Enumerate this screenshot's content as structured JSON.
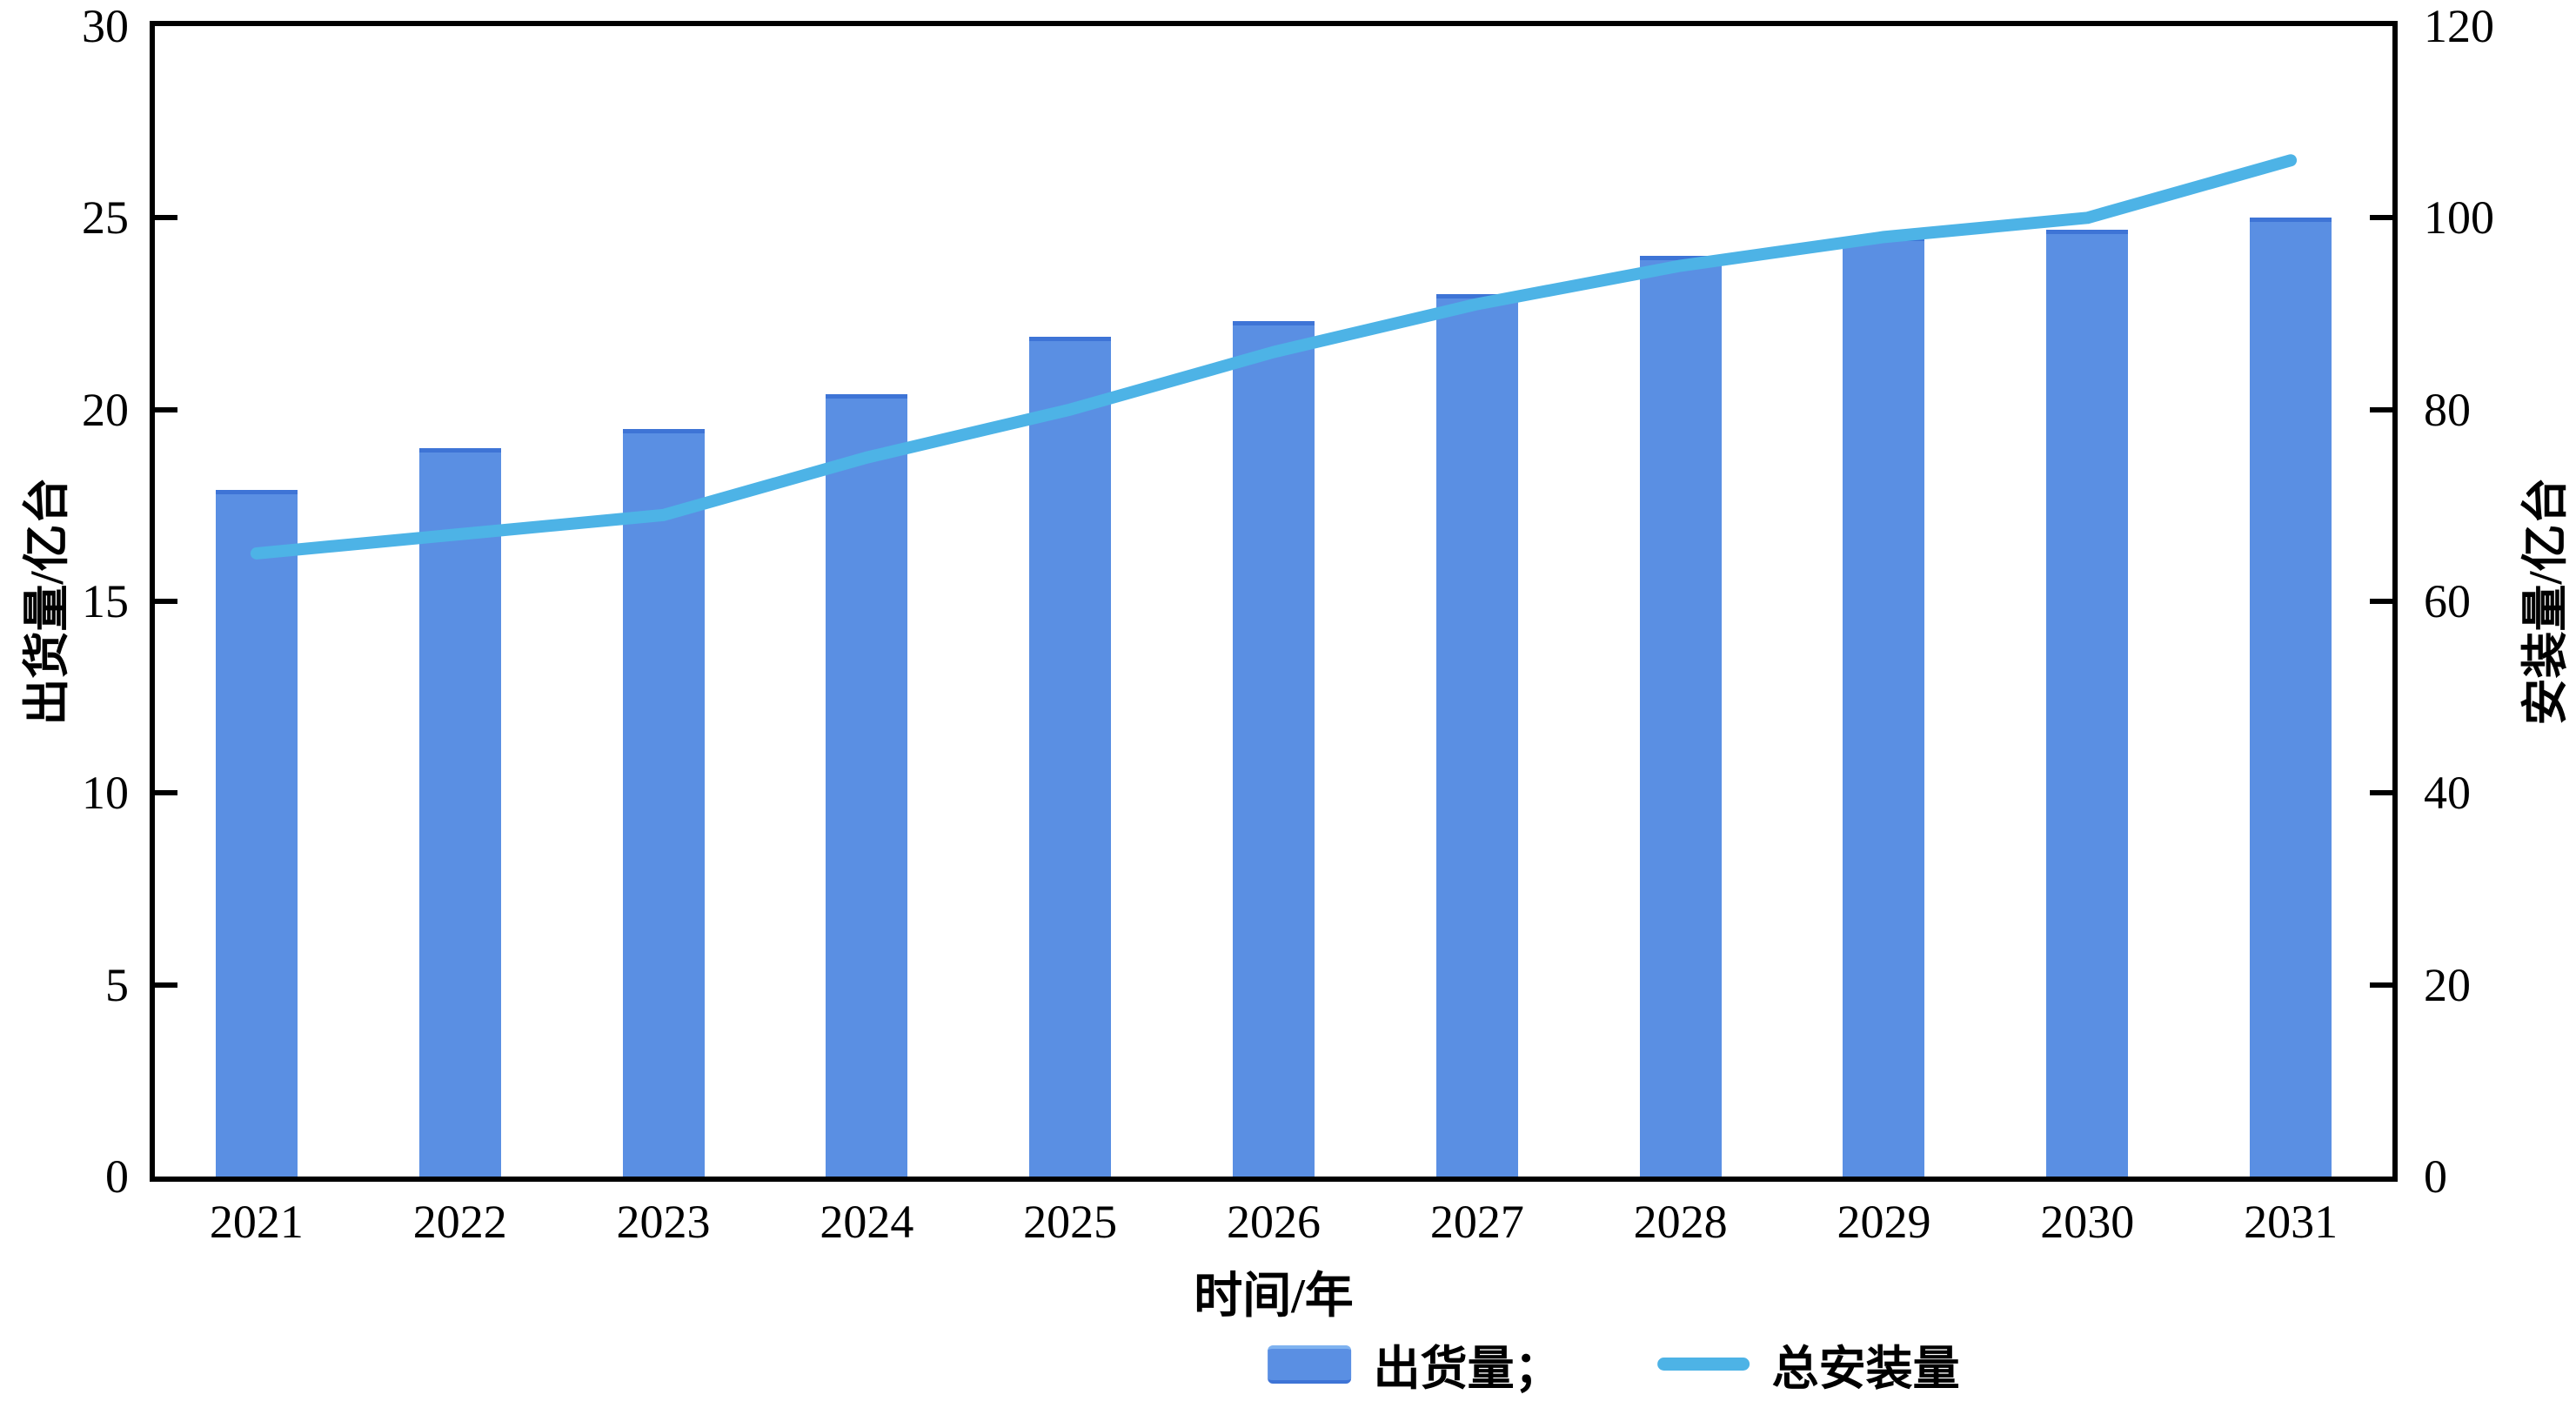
{
  "figure": {
    "background": "#ffffff"
  },
  "chart_data": {
    "type": "combo-bar-line",
    "categories": [
      "2021",
      "2022",
      "2023",
      "2024",
      "2025",
      "2026",
      "2027",
      "2028",
      "2029",
      "2030",
      "2031"
    ],
    "series": [
      {
        "name": "出货量",
        "type": "bar",
        "axis": "left",
        "color": "#5a8fe3",
        "edge_color": "#3e74d6",
        "values": [
          17.9,
          19.0,
          19.5,
          20.4,
          21.9,
          22.3,
          23.0,
          24.0,
          24.5,
          24.7,
          25.0
        ]
      },
      {
        "name": "总安装量",
        "type": "line",
        "axis": "right",
        "color": "#4db3e6",
        "values": [
          65,
          67,
          69,
          75,
          80,
          86,
          91,
          95,
          98,
          100,
          106
        ]
      }
    ],
    "x_axis": {
      "label": "时间/年"
    },
    "y_axis_left": {
      "label": "出货量/亿台",
      "min": 0,
      "max": 30,
      "ticks": [
        0,
        5,
        10,
        15,
        20,
        25,
        30
      ]
    },
    "y_axis_right": {
      "label": "安装量/亿台",
      "min": 0,
      "max": 120,
      "ticks": [
        0,
        20,
        40,
        60,
        80,
        100,
        120
      ]
    },
    "legend": {
      "position": "bottom",
      "items": [
        {
          "label": "出货量；",
          "swatch": "bar"
        },
        {
          "label": "总安装量",
          "swatch": "line"
        }
      ]
    },
    "grid": false
  }
}
